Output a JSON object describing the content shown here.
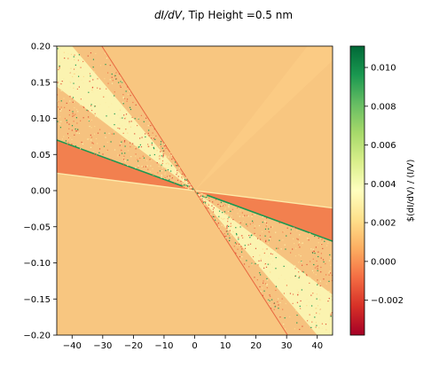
{
  "chart_data": {
    "type": "heatmap",
    "title_italic": "dI/dV",
    "title_rest": ", Tip Height =0.5 nm",
    "xlim": [
      -45,
      45
    ],
    "ylim": [
      -0.2,
      0.2
    ],
    "x_ticks": [
      -40,
      -30,
      -20,
      -10,
      0,
      10,
      20,
      30,
      40
    ],
    "x_tick_labels": [
      "−40",
      "−30",
      "−20",
      "−10",
      "0",
      "10",
      "20",
      "30",
      "40"
    ],
    "y_ticks": [
      0.2,
      0.15,
      0.1,
      0.05,
      0.0,
      -0.05,
      -0.1,
      -0.15,
      -0.2
    ],
    "y_tick_labels": [
      "0.20",
      "0.15",
      "0.10",
      "0.05",
      "0.00",
      "−0.05",
      "−0.10",
      "−0.15",
      "−0.20"
    ],
    "colorbar": {
      "label": "$(dI/dV) / (I/V)",
      "colormap": "RdYlGn",
      "range": [
        -0.0038,
        0.0111
      ],
      "ticks": [
        0.01,
        0.008,
        0.006,
        0.004,
        0.002,
        0.0,
        -0.002
      ],
      "tick_labels": [
        "0.010",
        "0.008",
        "0.006",
        "0.004",
        "0.002",
        "0.000",
        "−0.002"
      ]
    },
    "regions": [
      {
        "name": "background",
        "value": 0.0025,
        "color": "#f8c680"
      },
      {
        "name": "wedge-upper-right",
        "value": 0.0026,
        "color": "#fbcb84"
      },
      {
        "name": "wedge-low-value",
        "value": 0.0006,
        "color": "#f2804f"
      },
      {
        "name": "wedge-high-value",
        "value": 0.004,
        "color": "#fbf3b0"
      },
      {
        "name": "speckled-region",
        "value": 0.0021,
        "color": "#f6c27f"
      }
    ],
    "boundary_slopes": {
      "low_upper": -0.001556,
      "low_lower": -0.000533,
      "high_a": -0.005,
      "high_b": -0.0032,
      "speckle_edge": -0.0066
    }
  }
}
